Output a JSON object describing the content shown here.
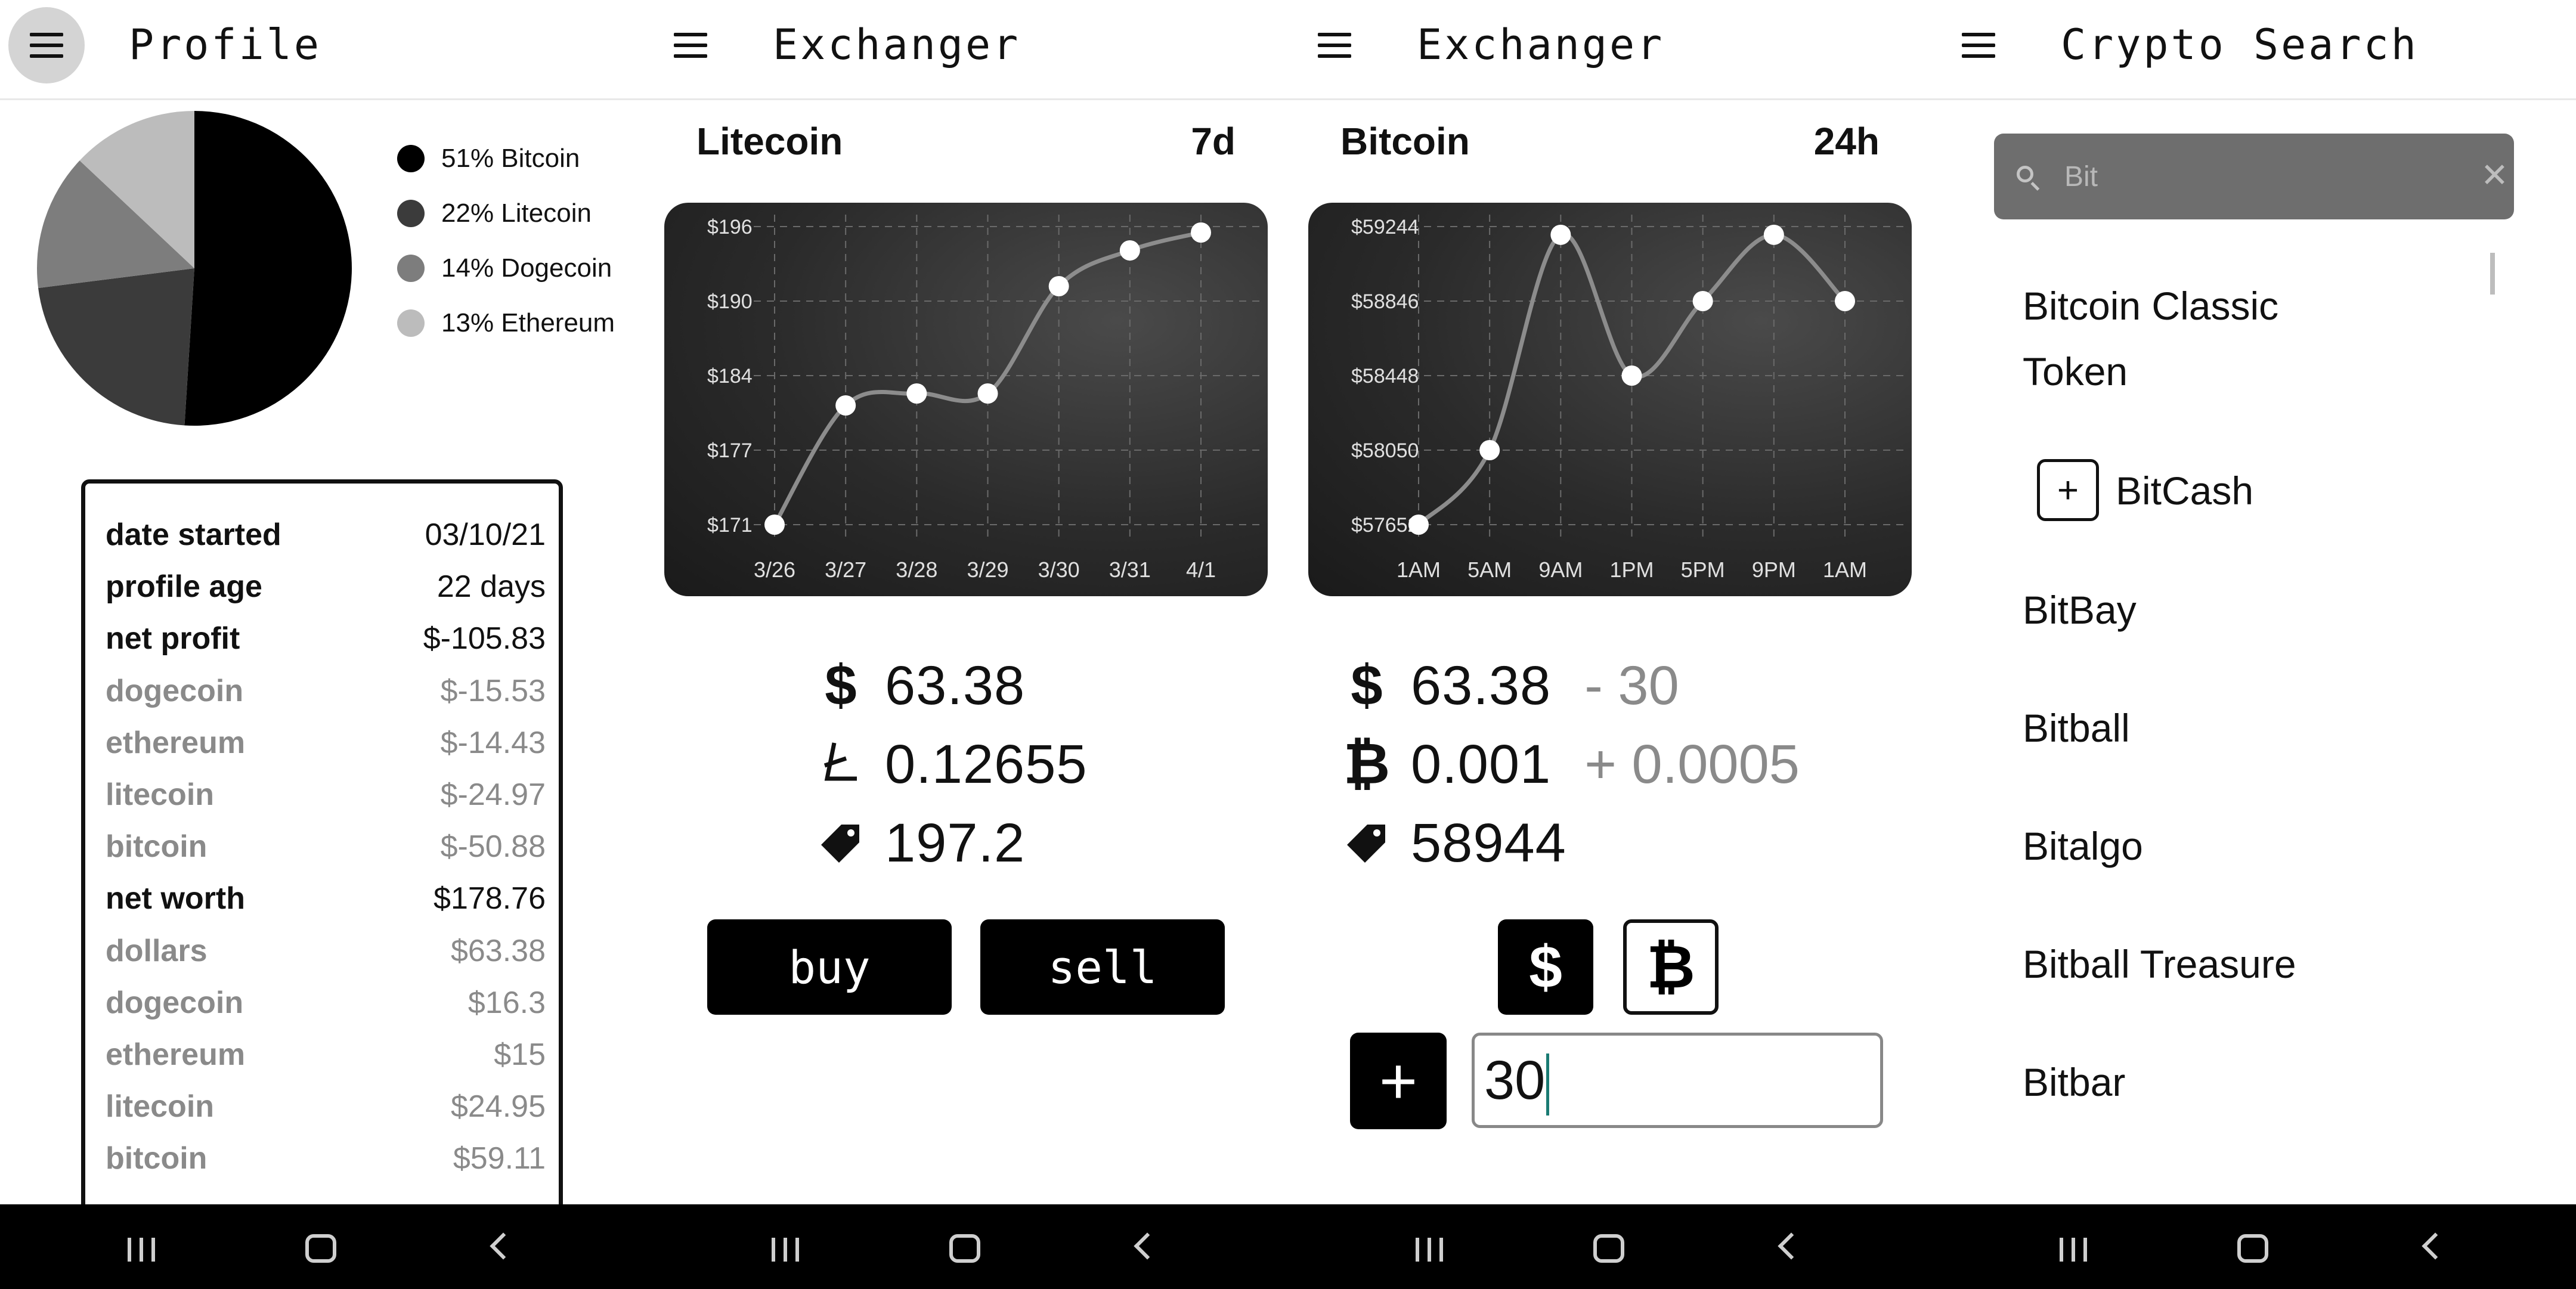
{
  "profile": {
    "title": "Profile",
    "pie": [
      {
        "label": "51% Bitcoin",
        "value": 51,
        "color": "#000000"
      },
      {
        "label": "22% Litecoin",
        "value": 22,
        "color": "#3b3b3b"
      },
      {
        "label": "14% Dogecoin",
        "value": 14,
        "color": "#7d7d7d"
      },
      {
        "label": "13% Ethereum",
        "value": 13,
        "color": "#bcbcbc"
      }
    ],
    "stats": [
      {
        "label": "date started",
        "value": "03/10/21",
        "muted": false
      },
      {
        "label": "profile age",
        "value": "22 days",
        "muted": false
      },
      {
        "label": "net profit",
        "value": "$-105.83",
        "muted": false
      },
      {
        "label": "dogecoin",
        "value": "$-15.53",
        "muted": true
      },
      {
        "label": "ethereum",
        "value": "$-14.43",
        "muted": true
      },
      {
        "label": "litecoin",
        "value": "$-24.97",
        "muted": true
      },
      {
        "label": "bitcoin",
        "value": "$-50.88",
        "muted": true
      },
      {
        "label": "net worth",
        "value": "$178.76",
        "muted": false
      },
      {
        "label": "dollars",
        "value": "$63.38",
        "muted": true
      },
      {
        "label": "dogecoin",
        "value": "$16.3",
        "muted": true
      },
      {
        "label": "ethereum",
        "value": "$15",
        "muted": true
      },
      {
        "label": "litecoin",
        "value": "$24.95",
        "muted": true
      },
      {
        "label": "bitcoin",
        "value": "$59.11",
        "muted": true
      }
    ]
  },
  "exchanger_litecoin": {
    "title": "Exchanger",
    "coin": "Litecoin",
    "range": "7d",
    "usd": "63.38",
    "coin_amount": "0.12655",
    "price": "197.2",
    "buy_label": "buy",
    "sell_label": "sell",
    "icons": {
      "usd": "dollar-icon",
      "coin": "litecoin-icon",
      "price": "price-tag-icon"
    }
  },
  "exchanger_bitcoin": {
    "title": "Exchanger",
    "coin": "Bitcoin",
    "range": "24h",
    "usd": "63.38",
    "usd_delta": "- 30",
    "coin_amount": "0.001",
    "coin_delta": "+ 0.0005",
    "price": "58944",
    "amount_value": "30",
    "usd_toggle": "$",
    "btc_toggle": "₿",
    "add_label": "+",
    "icons": {
      "usd": "dollar-icon",
      "coin": "bitcoin-icon",
      "price": "price-tag-icon"
    }
  },
  "search": {
    "title": "Crypto Search",
    "query": "Bit",
    "add_label": "+",
    "results": [
      "Bitcoin Classic",
      "Token",
      "BitCash",
      "BitBay",
      "Bitball",
      "Bitalgo",
      "Bitball Treasure",
      "Bitbar"
    ]
  },
  "chart_data": [
    {
      "type": "line",
      "title": "Litecoin",
      "range": "7d",
      "x": [
        "3/26",
        "3/27",
        "3/28",
        "3/29",
        "3/30",
        "3/31",
        "4/1"
      ],
      "values": [
        171,
        181,
        182,
        182,
        191,
        194,
        195.5
      ],
      "y_ticks": [
        "$196",
        "$190",
        "$184",
        "$177",
        "$171"
      ],
      "ylim": [
        171,
        196
      ],
      "grid": true
    },
    {
      "type": "line",
      "title": "Bitcoin",
      "range": "24h",
      "x": [
        "1AM",
        "5AM",
        "9AM",
        "1PM",
        "5PM",
        "9PM",
        "1AM"
      ],
      "values": [
        57652,
        58050,
        59200,
        58448,
        58846,
        59200,
        58846
      ],
      "y_ticks": [
        "$59244",
        "$58846",
        "$58448",
        "$58050",
        "$57652"
      ],
      "ylim": [
        57652,
        59244
      ],
      "grid": true
    }
  ]
}
